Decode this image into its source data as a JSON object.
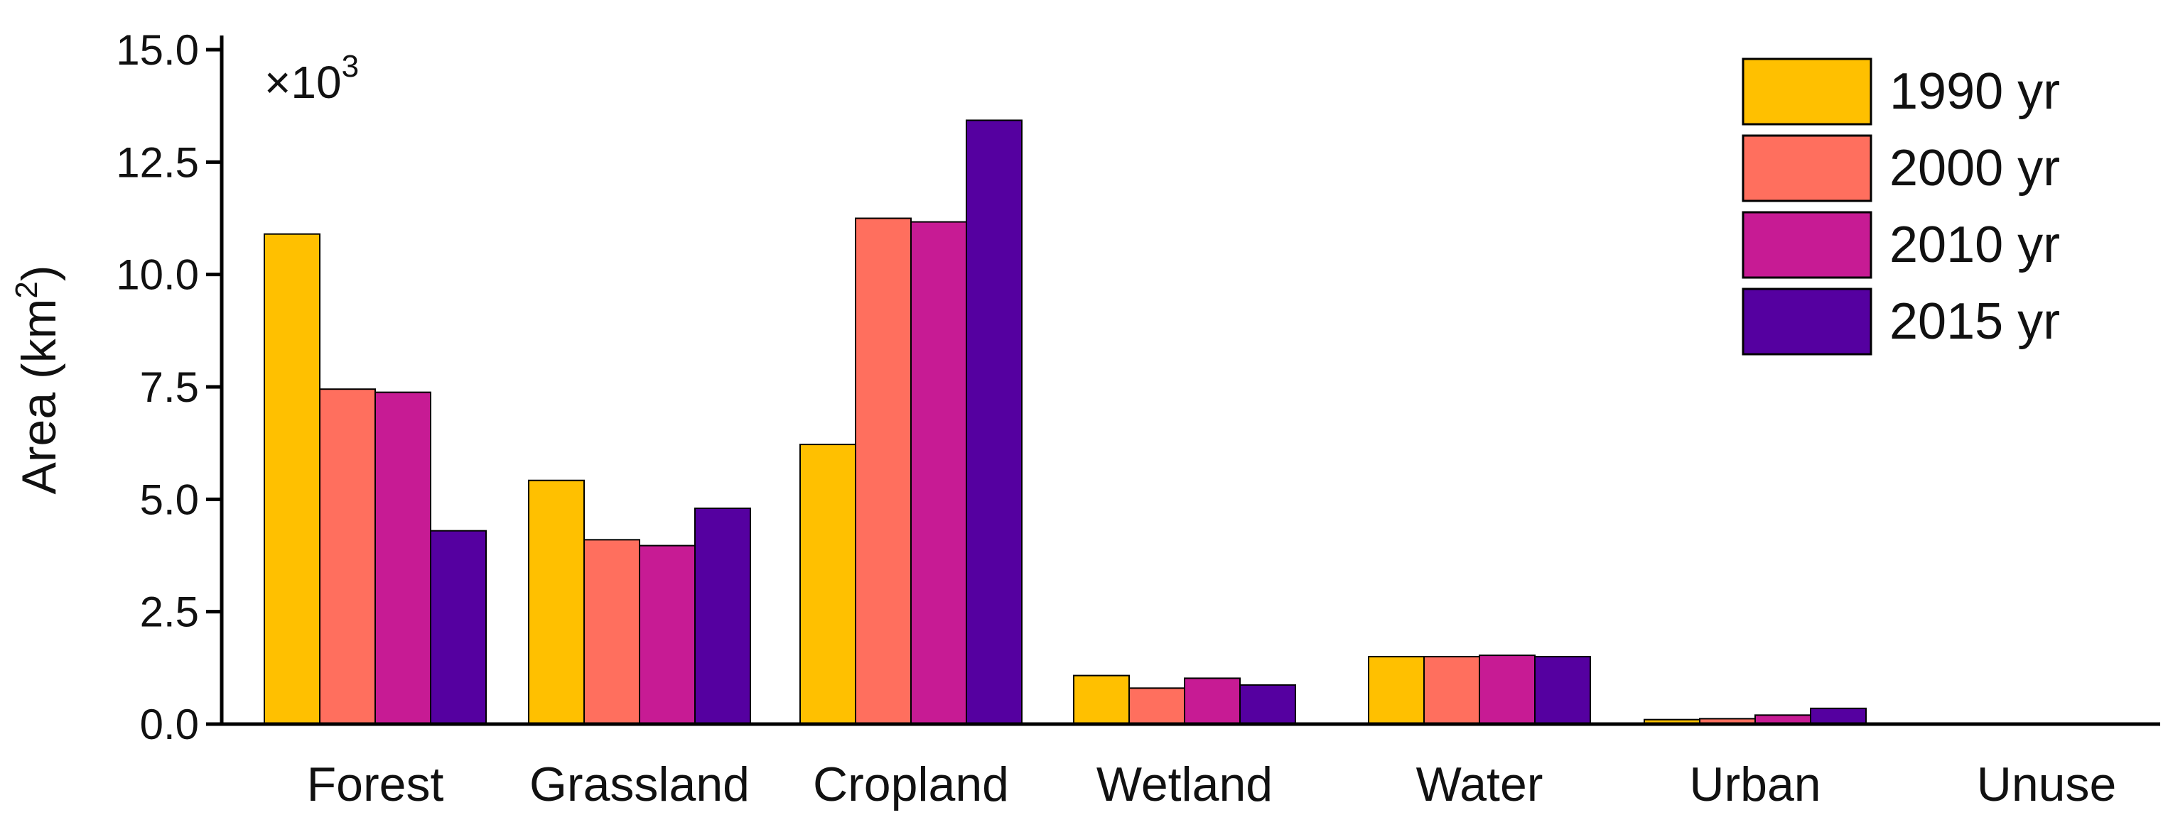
{
  "chart_data": {
    "type": "bar",
    "ylabel": "Area (km",
    "ylabel_sup": "2",
    "ylabel_end": ")",
    "multiplier": {
      "base": "×10",
      "exp": "3"
    },
    "ylim": [
      0,
      15.0
    ],
    "yticks": [
      "0.0",
      "2.5",
      "5.0",
      "7.5",
      "10.0",
      "12.5",
      "15.0"
    ],
    "categories": [
      "Forest",
      "Grassland",
      "Cropland",
      "Wetland",
      "Water",
      "Urban",
      "Unuse"
    ],
    "series": [
      {
        "name": "1990 yr",
        "color": "#FFC000",
        "values": [
          10.9,
          5.42,
          6.22,
          1.08,
          1.5,
          0.1,
          0.02
        ]
      },
      {
        "name": "2000 yr",
        "color": "#FF6F5E",
        "values": [
          7.45,
          4.1,
          11.25,
          0.8,
          1.5,
          0.12,
          0.0
        ]
      },
      {
        "name": "2010 yr",
        "color": "#C71B94",
        "values": [
          7.38,
          3.97,
          11.17,
          1.02,
          1.53,
          0.2,
          0.0
        ]
      },
      {
        "name": "2015 yr",
        "color": "#5500A0",
        "values": [
          4.3,
          4.8,
          13.43,
          0.87,
          1.5,
          0.35,
          0.0
        ]
      }
    ],
    "legend_position": "top-right",
    "grid": false
  }
}
